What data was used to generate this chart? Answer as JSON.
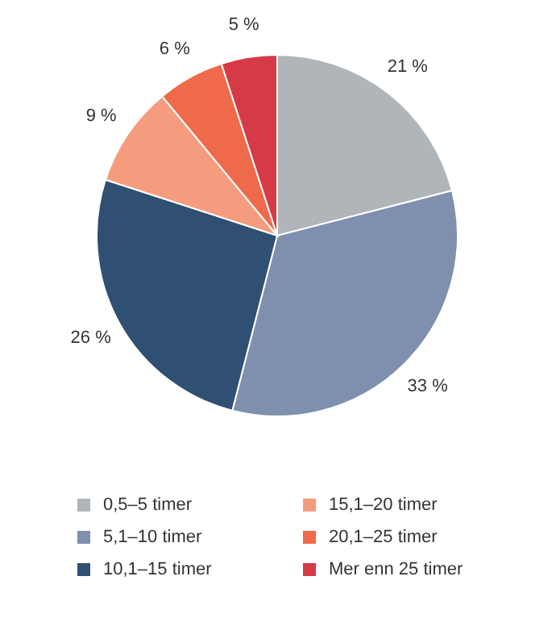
{
  "chart_data": {
    "type": "pie",
    "categories": [
      "0,5–5 timer",
      "5,1–10 timer",
      "10,1–15 timer",
      "15,1–20 timer",
      "20,1–25 timer",
      "Mer enn 25 timer"
    ],
    "values": [
      21,
      33,
      26,
      9,
      6,
      5
    ],
    "colors": [
      "#b0b5ba",
      "#7e90ad",
      "#2f5072",
      "#f59c7e",
      "#ef6a4a",
      "#d63a47"
    ],
    "value_labels": [
      "21 %",
      "33 %",
      "26 %",
      "9 %",
      "6 %",
      "5 %"
    ],
    "legend": "bottom"
  }
}
